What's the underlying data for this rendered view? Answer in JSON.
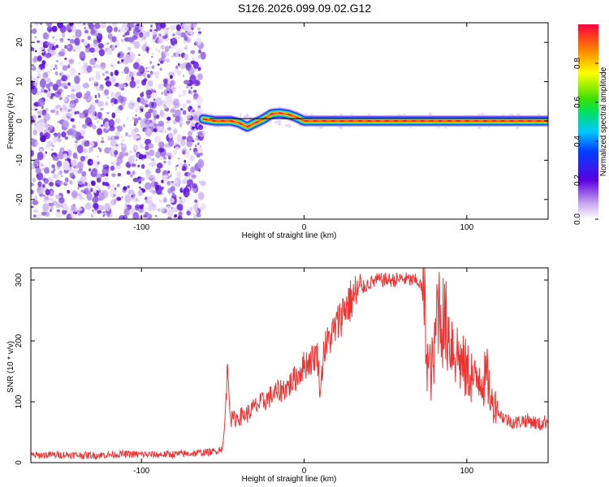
{
  "title": "S126.2026.099.09.02.G12",
  "chart_data": [
    {
      "type": "heatmap",
      "xlabel": "Height of straight line (km)",
      "ylabel": "Frequency (Hz)",
      "xlim": [
        -168,
        150
      ],
      "ylim": [
        -25,
        25
      ],
      "xticks": [
        -100,
        0,
        100
      ],
      "yticks": [
        -20,
        -10,
        0,
        10,
        20
      ],
      "noise_region_x": [
        -168,
        -62
      ],
      "signal_track": {
        "x": [
          -62,
          -55,
          -45,
          -40,
          -35,
          -30,
          -25,
          -20,
          -15,
          -10,
          -5,
          0,
          5,
          10,
          20,
          40,
          60,
          80,
          100,
          120,
          140,
          150
        ],
        "frequency": [
          0.5,
          0,
          0,
          -0.5,
          -1.5,
          -0.5,
          0.5,
          1.8,
          2.0,
          1.7,
          1.0,
          0,
          0,
          0,
          0,
          0,
          0,
          0,
          0,
          0,
          0,
          0
        ]
      },
      "colorbar": {
        "label": "Normalized spectral amplitude",
        "ticks": [
          0.0,
          0.2,
          0.4,
          0.6,
          0.8
        ],
        "range": [
          0,
          1
        ]
      }
    },
    {
      "type": "line",
      "xlabel": "Height of straight line (km)",
      "ylabel": "SNR (10 * v/v)",
      "xlim": [
        -168,
        150
      ],
      "ylim": [
        0,
        320
      ],
      "xticks": [
        -100,
        0,
        100
      ],
      "yticks": [
        0,
        100,
        200,
        300
      ],
      "color": "#ee3333",
      "series": [
        {
          "x": [
            -168,
            -150,
            -130,
            -110,
            -90,
            -70,
            -55,
            -50,
            -49,
            -47,
            -45,
            -40,
            -35,
            -30,
            -25,
            -20,
            -15,
            -10,
            -5,
            0,
            5,
            8,
            10,
            12,
            15,
            18,
            20,
            25,
            30,
            35,
            40,
            45,
            50,
            55,
            60,
            65,
            70,
            72,
            74,
            76,
            78,
            80,
            82,
            85,
            88,
            90,
            93,
            95,
            98,
            100,
            103,
            105,
            108,
            110,
            113,
            115,
            118,
            120,
            125,
            130,
            135,
            140,
            145,
            150
          ],
          "values": [
            12,
            13,
            12,
            14,
            13,
            15,
            18,
            25,
            55,
            160,
            70,
            75,
            80,
            92,
            100,
            110,
            118,
            125,
            140,
            160,
            170,
            180,
            115,
            185,
            200,
            215,
            225,
            255,
            270,
            285,
            295,
            300,
            300,
            300,
            302,
            300,
            298,
            290,
            250,
            160,
            150,
            170,
            270,
            235,
            220,
            205,
            185,
            175,
            155,
            150,
            145,
            130,
            150,
            135,
            140,
            95,
            100,
            80,
            70,
            65,
            70,
            68,
            62,
            70
          ]
        }
      ]
    }
  ]
}
